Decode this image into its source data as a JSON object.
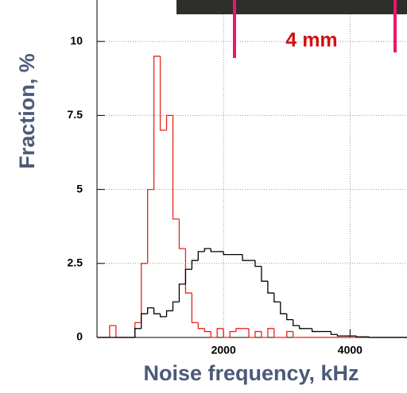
{
  "chart_data": {
    "type": "histogram",
    "xlabel": "Noise frequency, kHz",
    "ylabel": "Fraction, %",
    "annotation": "4 mm",
    "bins": [
      0,
      100,
      200,
      300,
      400,
      500,
      600,
      700,
      800,
      900,
      1000,
      1100,
      1200,
      1300,
      1400,
      1500,
      1600,
      1700,
      1800,
      1900,
      2000,
      2100,
      2200,
      2300,
      2400,
      2500,
      2600,
      2700,
      2800,
      2900,
      3000,
      3100,
      3200,
      3300,
      3400,
      3500,
      3600,
      3700,
      3800,
      3900,
      4000,
      4100,
      4200,
      4300,
      4400,
      4500,
      4600,
      4700,
      4800,
      4900
    ],
    "series": [
      {
        "color": "#e8241c",
        "values": [
          0,
          0,
          0.4,
          0,
          0,
          0,
          0.5,
          2.5,
          5,
          9.5,
          7,
          7.5,
          4,
          3,
          1.5,
          0.5,
          0.3,
          0.2,
          0,
          0.3,
          0,
          0.2,
          0.3,
          0.3,
          0,
          0.2,
          0,
          0.3,
          0,
          0,
          0.2,
          0,
          0,
          0,
          0,
          0,
          0,
          0,
          0,
          0,
          0,
          0,
          0,
          0,
          0,
          0,
          0,
          0,
          0
        ]
      },
      {
        "color": "#000000",
        "values": [
          0,
          0,
          0,
          0,
          0,
          0,
          0.3,
          0.8,
          1.0,
          0.8,
          0.7,
          0.9,
          1.2,
          1.8,
          2.3,
          2.6,
          2.9,
          3.0,
          2.9,
          2.9,
          2.8,
          2.8,
          2.8,
          2.6,
          2.6,
          2.4,
          1.9,
          1.5,
          1.2,
          0.8,
          0.6,
          0.4,
          0.3,
          0.3,
          0.2,
          0.2,
          0.2,
          0.1,
          0.05,
          0.05,
          0.05,
          0.02,
          0.02,
          0,
          0,
          0,
          0,
          0,
          0
        ]
      }
    ],
    "xlim": [
      0,
      4900
    ],
    "xticks": [
      2000,
      4000
    ],
    "ylim": [
      0,
      11.4
    ],
    "yticks": [
      0,
      2.5,
      5,
      7.5,
      10
    ],
    "grid": true
  }
}
